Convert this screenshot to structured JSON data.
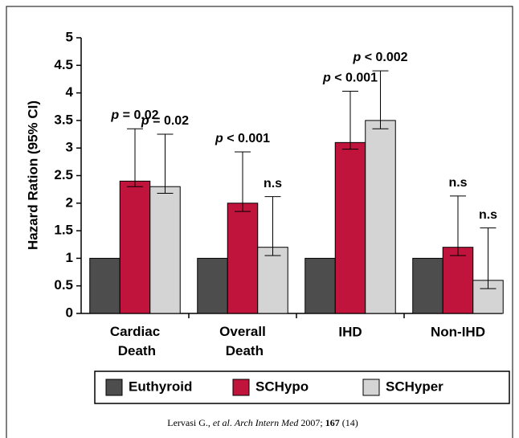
{
  "chart_data": {
    "type": "bar",
    "ylabel": "Hazard Ration (95% CI)",
    "categories": [
      "Cardiac Death",
      "Overall Death",
      "IHD",
      "Non-IHD"
    ],
    "ylim": [
      0,
      5
    ],
    "yticks": [
      0,
      0.5,
      1,
      1.5,
      2,
      2.5,
      3,
      3.5,
      4,
      4.5,
      5
    ],
    "legend": "bottom",
    "series": [
      {
        "name": "Euthyroid",
        "color": "#4d4d4d",
        "values": [
          1,
          1,
          1,
          1
        ]
      },
      {
        "name": "SCHypo",
        "color": "#c0143c",
        "values": [
          2.4,
          2.0,
          3.1,
          1.2
        ],
        "ci_low": [
          2.3,
          1.85,
          2.98,
          1.05
        ],
        "ci_high": [
          3.35,
          2.93,
          4.03,
          2.13
        ],
        "annotations": [
          "p = 0.02",
          "p < 0.001",
          "p < 0.001",
          "n.s"
        ]
      },
      {
        "name": "SCHyper",
        "color": "#d4d4d4",
        "values": [
          2.3,
          1.2,
          3.5,
          0.6
        ],
        "ci_low": [
          2.18,
          1.05,
          3.35,
          0.45
        ],
        "ci_high": [
          3.25,
          2.12,
          4.4,
          1.55
        ],
        "annotations": [
          "p = 0.02",
          "n.s",
          "p < 0.002",
          "n.s"
        ]
      }
    ],
    "source": [
      "Lervasi G., ",
      "et al",
      ". ",
      "Arch Intern Med",
      " 2007; ",
      "167",
      " (14)"
    ]
  }
}
